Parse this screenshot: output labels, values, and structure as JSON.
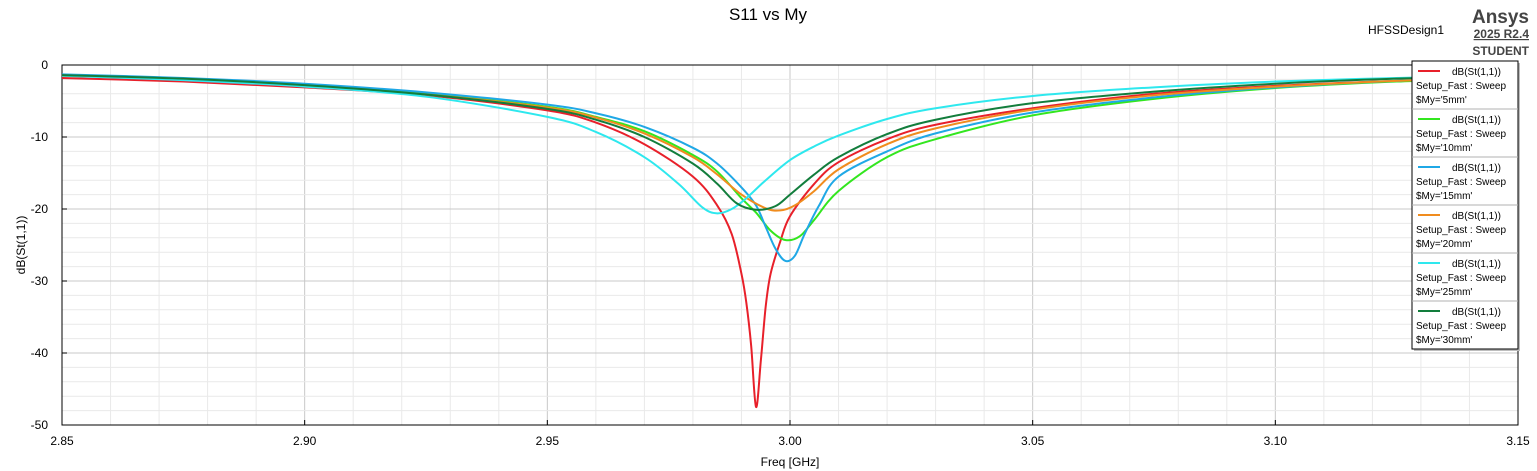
{
  "chart_data": {
    "type": "line",
    "title": "S11 vs My",
    "xlabel": "Freq [GHz]",
    "ylabel": "dB(St(1,1))",
    "xlim": [
      2.85,
      3.15
    ],
    "ylim": [
      -50,
      0
    ],
    "x_ticks": [
      "2.85",
      "2.90",
      "2.95",
      "3.00",
      "3.05",
      "3.10",
      "3.15"
    ],
    "y_ticks": [
      "0",
      "-10",
      "-20",
      "-30",
      "-40",
      "-50"
    ],
    "grid": true,
    "legend_position": "top-right",
    "series": [
      {
        "name": "dB(St(1,1))",
        "setup": "Setup_Fast : Sweep",
        "param": "$My='5mm'",
        "color": "#e8202a",
        "points": [
          [
            2.85,
            -1.8
          ],
          [
            2.875,
            -2.3
          ],
          [
            2.9,
            -3.1
          ],
          [
            2.925,
            -4.2
          ],
          [
            2.95,
            -6.3
          ],
          [
            2.96,
            -8.0
          ],
          [
            2.97,
            -11.0
          ],
          [
            2.98,
            -15.5
          ],
          [
            2.985,
            -19.5
          ],
          [
            2.988,
            -23.5
          ],
          [
            2.99,
            -29.0
          ],
          [
            2.991,
            -33.0
          ],
          [
            2.992,
            -39.0
          ],
          [
            2.993,
            -47.5
          ],
          [
            2.994,
            -41.0
          ],
          [
            2.995,
            -33.5
          ],
          [
            2.996,
            -29.0
          ],
          [
            2.998,
            -24.5
          ],
          [
            3.0,
            -21.0
          ],
          [
            3.005,
            -16.5
          ],
          [
            3.01,
            -13.5
          ],
          [
            3.02,
            -10.3
          ],
          [
            3.03,
            -8.3
          ],
          [
            3.05,
            -6.0
          ],
          [
            3.075,
            -4.0
          ],
          [
            3.1,
            -2.9
          ],
          [
            3.125,
            -2.2
          ],
          [
            3.15,
            -1.7
          ]
        ]
      },
      {
        "name": "dB(St(1,1))",
        "setup": "Setup_Fast : Sweep",
        "param": "$My='10mm'",
        "color": "#33e61f",
        "points": [
          [
            2.85,
            -1.4
          ],
          [
            2.875,
            -1.9
          ],
          [
            2.9,
            -2.8
          ],
          [
            2.925,
            -4.0
          ],
          [
            2.95,
            -5.8
          ],
          [
            2.96,
            -7.2
          ],
          [
            2.97,
            -9.2
          ],
          [
            2.98,
            -12.5
          ],
          [
            2.985,
            -14.8
          ],
          [
            2.99,
            -18.5
          ],
          [
            2.993,
            -20.5
          ],
          [
            2.996,
            -23.0
          ],
          [
            2.999,
            -24.3
          ],
          [
            3.002,
            -23.8
          ],
          [
            3.005,
            -21.5
          ],
          [
            3.01,
            -17.5
          ],
          [
            3.02,
            -12.8
          ],
          [
            3.03,
            -10.3
          ],
          [
            3.05,
            -7.0
          ],
          [
            3.075,
            -4.7
          ],
          [
            3.1,
            -3.2
          ],
          [
            3.125,
            -2.3
          ],
          [
            3.15,
            -1.8
          ]
        ]
      },
      {
        "name": "dB(St(1,1))",
        "setup": "Setup_Fast : Sweep",
        "param": "$My='15mm'",
        "color": "#1fa8e6",
        "points": [
          [
            2.85,
            -1.3
          ],
          [
            2.875,
            -1.8
          ],
          [
            2.9,
            -2.6
          ],
          [
            2.925,
            -3.8
          ],
          [
            2.95,
            -5.5
          ],
          [
            2.96,
            -6.7
          ],
          [
            2.97,
            -8.6
          ],
          [
            2.98,
            -11.5
          ],
          [
            2.985,
            -13.7
          ],
          [
            2.99,
            -17.0
          ],
          [
            2.993,
            -19.5
          ],
          [
            2.995,
            -22.5
          ],
          [
            2.997,
            -25.5
          ],
          [
            2.999,
            -27.2
          ],
          [
            3.001,
            -26.5
          ],
          [
            3.003,
            -23.5
          ],
          [
            3.006,
            -19.5
          ],
          [
            3.01,
            -15.5
          ],
          [
            3.02,
            -12.0
          ],
          [
            3.03,
            -9.5
          ],
          [
            3.05,
            -6.6
          ],
          [
            3.075,
            -4.5
          ],
          [
            3.1,
            -3.1
          ],
          [
            3.125,
            -2.2
          ],
          [
            3.15,
            -1.7
          ]
        ]
      },
      {
        "name": "dB(St(1,1))",
        "setup": "Setup_Fast : Sweep",
        "param": "$My='20mm'",
        "color": "#f08c1e",
        "points": [
          [
            2.85,
            -1.5
          ],
          [
            2.875,
            -2.0
          ],
          [
            2.9,
            -2.9
          ],
          [
            2.925,
            -4.1
          ],
          [
            2.95,
            -5.9
          ],
          [
            2.96,
            -7.3
          ],
          [
            2.97,
            -9.5
          ],
          [
            2.98,
            -12.8
          ],
          [
            2.985,
            -15.2
          ],
          [
            2.99,
            -18.0
          ],
          [
            2.995,
            -19.9
          ],
          [
            2.998,
            -20.2
          ],
          [
            3.001,
            -19.5
          ],
          [
            3.005,
            -17.5
          ],
          [
            3.01,
            -14.5
          ],
          [
            3.02,
            -11.0
          ],
          [
            3.03,
            -8.8
          ],
          [
            3.05,
            -6.2
          ],
          [
            3.075,
            -4.2
          ],
          [
            3.1,
            -3.0
          ],
          [
            3.125,
            -2.2
          ],
          [
            3.15,
            -1.7
          ]
        ]
      },
      {
        "name": "dB(St(1,1))",
        "setup": "Setup_Fast : Sweep",
        "param": "$My='25mm'",
        "color": "#2ee8ee",
        "points": [
          [
            2.85,
            -1.5
          ],
          [
            2.875,
            -2.1
          ],
          [
            2.9,
            -3.0
          ],
          [
            2.925,
            -4.4
          ],
          [
            2.95,
            -7.2
          ],
          [
            2.96,
            -9.3
          ],
          [
            2.97,
            -12.8
          ],
          [
            2.977,
            -16.5
          ],
          [
            2.982,
            -19.8
          ],
          [
            2.985,
            -20.6
          ],
          [
            2.988,
            -20.0
          ],
          [
            2.991,
            -18.5
          ],
          [
            2.995,
            -16.0
          ],
          [
            3.0,
            -13.2
          ],
          [
            3.005,
            -11.3
          ],
          [
            3.01,
            -9.8
          ],
          [
            3.02,
            -7.5
          ],
          [
            3.03,
            -6.0
          ],
          [
            3.05,
            -4.3
          ],
          [
            3.075,
            -3.1
          ],
          [
            3.1,
            -2.3
          ],
          [
            3.125,
            -1.8
          ],
          [
            3.15,
            -1.4
          ]
        ]
      },
      {
        "name": "dB(St(1,1))",
        "setup": "Setup_Fast : Sweep",
        "param": "$My='30mm'",
        "color": "#127d3c",
        "points": [
          [
            2.85,
            -1.4
          ],
          [
            2.875,
            -1.9
          ],
          [
            2.9,
            -2.8
          ],
          [
            2.925,
            -4.1
          ],
          [
            2.95,
            -6.1
          ],
          [
            2.96,
            -7.6
          ],
          [
            2.97,
            -10.0
          ],
          [
            2.98,
            -13.7
          ],
          [
            2.985,
            -16.5
          ],
          [
            2.989,
            -19.2
          ],
          [
            2.993,
            -20.1
          ],
          [
            2.997,
            -19.6
          ],
          [
            3.0,
            -18.0
          ],
          [
            3.005,
            -15.2
          ],
          [
            3.01,
            -12.8
          ],
          [
            3.02,
            -9.6
          ],
          [
            3.03,
            -7.6
          ],
          [
            3.05,
            -5.3
          ],
          [
            3.075,
            -3.7
          ],
          [
            3.1,
            -2.6
          ],
          [
            3.125,
            -1.9
          ],
          [
            3.15,
            -1.5
          ]
        ]
      }
    ]
  },
  "header": {
    "design_name": "HFSSDesign1",
    "brand": "Ansys",
    "version": "2025 R2.4",
    "edition": "STUDENT"
  }
}
